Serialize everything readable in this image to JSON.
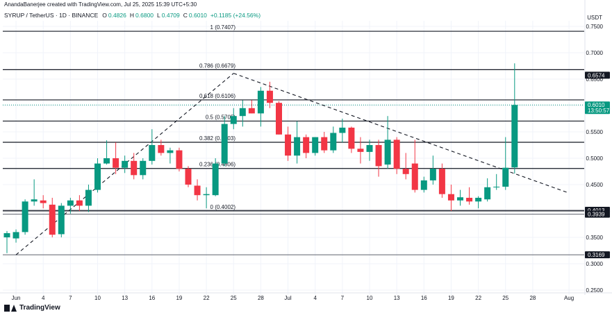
{
  "header": {
    "credit": "AnandaBanerjee created with TradingView.com, Jul 25, 2025 15:39 UTC+5:30",
    "symbol": "SYRUP / TetherUS · 1D · BINANCE",
    "open_label": "O",
    "open": "0.4826",
    "high_label": "H",
    "high": "0.6800",
    "low_label": "L",
    "low": "0.4709",
    "close_label": "C",
    "close": "0.6010",
    "change": "+0.1185 (+24.56%)",
    "currency": "USDT"
  },
  "footer": {
    "brand": "TradingView"
  },
  "colors": {
    "up": "#089981",
    "down": "#f23645",
    "line": "#131722",
    "grid": "#f0f3fa"
  },
  "chart_data": {
    "type": "candlestick",
    "y_ticks": [
      "0.7500",
      "0.7000",
      "0.6500",
      "0.6000",
      "0.5500",
      "0.5000",
      "0.4500",
      "0.4000",
      "0.3500",
      "0.3000",
      "0.2500"
    ],
    "ylim": [
      0.25,
      0.75
    ],
    "x_ticks": [
      {
        "label": "Jun",
        "i": 1
      },
      {
        "label": "4",
        "i": 4
      },
      {
        "label": "7",
        "i": 7
      },
      {
        "label": "10",
        "i": 10
      },
      {
        "label": "13",
        "i": 13
      },
      {
        "label": "16",
        "i": 16
      },
      {
        "label": "19",
        "i": 19
      },
      {
        "label": "22",
        "i": 22
      },
      {
        "label": "25",
        "i": 25
      },
      {
        "label": "28",
        "i": 28
      },
      {
        "label": "Jul",
        "i": 31
      },
      {
        "label": "4",
        "i": 34
      },
      {
        "label": "7",
        "i": 37
      },
      {
        "label": "10",
        "i": 40
      },
      {
        "label": "13",
        "i": 43
      },
      {
        "label": "16",
        "i": 46
      },
      {
        "label": "19",
        "i": 49
      },
      {
        "label": "22",
        "i": 52
      },
      {
        "label": "25",
        "i": 55
      },
      {
        "label": "28",
        "i": 58
      },
      {
        "label": "Aug",
        "i": 62
      }
    ],
    "candles": [
      {
        "o": 0.35,
        "h": 0.362,
        "l": 0.32,
        "c": 0.358
      },
      {
        "o": 0.348,
        "h": 0.365,
        "l": 0.34,
        "c": 0.36
      },
      {
        "o": 0.36,
        "h": 0.422,
        "l": 0.355,
        "c": 0.418
      },
      {
        "o": 0.418,
        "h": 0.46,
        "l": 0.41,
        "c": 0.422
      },
      {
        "o": 0.42,
        "h": 0.43,
        "l": 0.405,
        "c": 0.415
      },
      {
        "o": 0.412,
        "h": 0.425,
        "l": 0.35,
        "c": 0.355
      },
      {
        "o": 0.356,
        "h": 0.415,
        "l": 0.35,
        "c": 0.41
      },
      {
        "o": 0.41,
        "h": 0.425,
        "l": 0.395,
        "c": 0.42
      },
      {
        "o": 0.42,
        "h": 0.43,
        "l": 0.4,
        "c": 0.41
      },
      {
        "o": 0.41,
        "h": 0.45,
        "l": 0.398,
        "c": 0.44
      },
      {
        "o": 0.44,
        "h": 0.5,
        "l": 0.435,
        "c": 0.49
      },
      {
        "o": 0.49,
        "h": 0.534,
        "l": 0.488,
        "c": 0.5
      },
      {
        "o": 0.5,
        "h": 0.53,
        "l": 0.47,
        "c": 0.482
      },
      {
        "o": 0.482,
        "h": 0.505,
        "l": 0.472,
        "c": 0.495
      },
      {
        "o": 0.495,
        "h": 0.51,
        "l": 0.46,
        "c": 0.468
      },
      {
        "o": 0.468,
        "h": 0.5,
        "l": 0.46,
        "c": 0.495
      },
      {
        "o": 0.495,
        "h": 0.555,
        "l": 0.488,
        "c": 0.525
      },
      {
        "o": 0.525,
        "h": 0.535,
        "l": 0.505,
        "c": 0.51
      },
      {
        "o": 0.51,
        "h": 0.52,
        "l": 0.49,
        "c": 0.515
      },
      {
        "o": 0.515,
        "h": 0.52,
        "l": 0.475,
        "c": 0.48
      },
      {
        "o": 0.48,
        "h": 0.485,
        "l": 0.445,
        "c": 0.45
      },
      {
        "o": 0.448,
        "h": 0.46,
        "l": 0.42,
        "c": 0.43
      },
      {
        "o": 0.43,
        "h": 0.445,
        "l": 0.405,
        "c": 0.432
      },
      {
        "o": 0.43,
        "h": 0.5,
        "l": 0.428,
        "c": 0.49
      },
      {
        "o": 0.49,
        "h": 0.58,
        "l": 0.485,
        "c": 0.565
      },
      {
        "o": 0.565,
        "h": 0.595,
        "l": 0.555,
        "c": 0.58
      },
      {
        "o": 0.58,
        "h": 0.61,
        "l": 0.56,
        "c": 0.595
      },
      {
        "o": 0.595,
        "h": 0.61,
        "l": 0.585,
        "c": 0.585
      },
      {
        "o": 0.585,
        "h": 0.635,
        "l": 0.56,
        "c": 0.628
      },
      {
        "o": 0.628,
        "h": 0.645,
        "l": 0.595,
        "c": 0.605
      },
      {
        "o": 0.605,
        "h": 0.608,
        "l": 0.545,
        "c": 0.545
      },
      {
        "o": 0.545,
        "h": 0.56,
        "l": 0.495,
        "c": 0.505
      },
      {
        "o": 0.505,
        "h": 0.57,
        "l": 0.49,
        "c": 0.54
      },
      {
        "o": 0.54,
        "h": 0.545,
        "l": 0.5,
        "c": 0.51
      },
      {
        "o": 0.51,
        "h": 0.54,
        "l": 0.505,
        "c": 0.54
      },
      {
        "o": 0.54,
        "h": 0.55,
        "l": 0.51,
        "c": 0.515
      },
      {
        "o": 0.515,
        "h": 0.56,
        "l": 0.51,
        "c": 0.548
      },
      {
        "o": 0.548,
        "h": 0.575,
        "l": 0.53,
        "c": 0.558
      },
      {
        "o": 0.558,
        "h": 0.56,
        "l": 0.51,
        "c": 0.518
      },
      {
        "o": 0.518,
        "h": 0.54,
        "l": 0.49,
        "c": 0.512
      },
      {
        "o": 0.512,
        "h": 0.535,
        "l": 0.495,
        "c": 0.525
      },
      {
        "o": 0.525,
        "h": 0.535,
        "l": 0.465,
        "c": 0.485
      },
      {
        "o": 0.488,
        "h": 0.58,
        "l": 0.48,
        "c": 0.535
      },
      {
        "o": 0.535,
        "h": 0.54,
        "l": 0.47,
        "c": 0.48
      },
      {
        "o": 0.48,
        "h": 0.51,
        "l": 0.46,
        "c": 0.47
      },
      {
        "o": 0.49,
        "h": 0.535,
        "l": 0.435,
        "c": 0.44
      },
      {
        "o": 0.44,
        "h": 0.465,
        "l": 0.435,
        "c": 0.458
      },
      {
        "o": 0.458,
        "h": 0.505,
        "l": 0.45,
        "c": 0.48
      },
      {
        "o": 0.48,
        "h": 0.49,
        "l": 0.425,
        "c": 0.432
      },
      {
        "o": 0.432,
        "h": 0.45,
        "l": 0.4,
        "c": 0.42
      },
      {
        "o": 0.42,
        "h": 0.44,
        "l": 0.41,
        "c": 0.426
      },
      {
        "o": 0.425,
        "h": 0.445,
        "l": 0.412,
        "c": 0.418
      },
      {
        "o": 0.418,
        "h": 0.428,
        "l": 0.405,
        "c": 0.425
      },
      {
        "o": 0.422,
        "h": 0.462,
        "l": 0.418,
        "c": 0.445
      },
      {
        "o": 0.445,
        "h": 0.47,
        "l": 0.44,
        "c": 0.446
      },
      {
        "o": 0.446,
        "h": 0.54,
        "l": 0.44,
        "c": 0.482
      },
      {
        "o": 0.4826,
        "h": 0.68,
        "l": 0.4709,
        "c": 0.601
      }
    ],
    "fib_levels": [
      {
        "label": "1 (0.7407)",
        "value": 0.7407
      },
      {
        "label": "0.786 (0.6679)",
        "value": 0.6679
      },
      {
        "label": "0.618 (0.6106)",
        "value": 0.6106
      },
      {
        "label": "0.5 (0.5705)",
        "value": 0.5705
      },
      {
        "label": "0.382 (0.5303)",
        "value": 0.5303
      },
      {
        "label": "0.236 (0.4806)",
        "value": 0.4806
      },
      {
        "label": "0 (0.4002)",
        "value": 0.4002
      }
    ],
    "extra_lines": [
      {
        "value": 0.4013
      },
      {
        "value": 0.3939
      },
      {
        "value": 0.3169
      }
    ],
    "price_tags": [
      {
        "text": "0.6574",
        "value": 0.6574,
        "style": "dark"
      },
      {
        "text": "0.6010",
        "sub": "13:50:57",
        "value": 0.601,
        "style": "up"
      },
      {
        "text": "0.4013",
        "value": 0.4013,
        "style": "dark"
      },
      {
        "text": "0.3939",
        "value": 0.3939,
        "style": "dark"
      },
      {
        "text": "0.3169",
        "value": 0.3169,
        "style": "dark"
      }
    ],
    "trendlines": [
      {
        "from": {
          "i": 1,
          "v": 0.3169
        },
        "to": {
          "i": 25,
          "v": 0.661
        }
      },
      {
        "from": {
          "i": 25,
          "v": 0.661
        },
        "to": {
          "i": 62,
          "v": 0.434
        }
      }
    ],
    "current_price": 0.601
  }
}
